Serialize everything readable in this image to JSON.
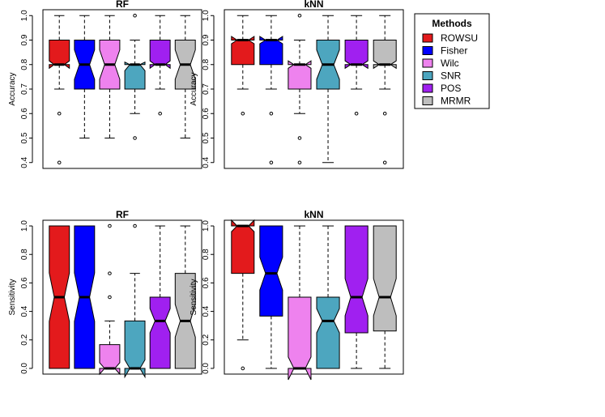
{
  "legend": {
    "title": "Methods",
    "entries": [
      {
        "name": "ROWSU",
        "color": "#e31a1c"
      },
      {
        "name": "Fisher",
        "color": "#0000ff"
      },
      {
        "name": "Wilc",
        "color": "#ee82ee"
      },
      {
        "name": "SNR",
        "color": "#4da6bf"
      },
      {
        "name": "POS",
        "color": "#a020f0"
      },
      {
        "name": "MRMR",
        "color": "#bebebe"
      }
    ]
  },
  "chart_data": [
    {
      "type": "boxplot",
      "title": "RF",
      "ylabel": "Accuracy",
      "ylim": [
        0.4,
        1.0
      ],
      "yticks": [
        "0.4",
        "0.5",
        "0.6",
        "0.7",
        "0.8",
        "0.9",
        "1.0"
      ],
      "series": [
        {
          "name": "ROWSU",
          "q1": 0.8,
          "median": 0.8,
          "q3": 0.9,
          "whisker_low": 0.7,
          "whisker_high": 1.0,
          "notch": [
            0.785,
            0.815
          ],
          "outliers": [
            0.6,
            0.4
          ]
        },
        {
          "name": "Fisher",
          "q1": 0.7,
          "median": 0.8,
          "q3": 0.9,
          "whisker_low": 0.5,
          "whisker_high": 1.0,
          "notch": [
            0.74,
            0.86
          ],
          "outliers": []
        },
        {
          "name": "Wilc",
          "q1": 0.7,
          "median": 0.8,
          "q3": 0.9,
          "whisker_low": 0.5,
          "whisker_high": 1.0,
          "notch": [
            0.74,
            0.86
          ],
          "outliers": []
        },
        {
          "name": "SNR",
          "q1": 0.7,
          "median": 0.8,
          "q3": 0.8,
          "whisker_low": 0.6,
          "whisker_high": 0.9,
          "notch": [
            0.775,
            0.81
          ],
          "outliers": [
            1.0,
            0.5
          ]
        },
        {
          "name": "POS",
          "q1": 0.8,
          "median": 0.8,
          "q3": 0.9,
          "whisker_low": 0.7,
          "whisker_high": 1.0,
          "notch": [
            0.785,
            0.815
          ],
          "outliers": [
            0.6
          ]
        },
        {
          "name": "MRMR",
          "q1": 0.7,
          "median": 0.8,
          "q3": 0.9,
          "whisker_low": 0.5,
          "whisker_high": 1.0,
          "notch": [
            0.74,
            0.86
          ],
          "outliers": []
        }
      ]
    },
    {
      "type": "boxplot",
      "title": "kNN",
      "ylabel": "Accuracy",
      "ylim": [
        0.4,
        1.0
      ],
      "yticks": [
        "0.4",
        "0.5",
        "0.6",
        "0.7",
        "0.8",
        "0.9",
        "1.0"
      ],
      "series": [
        {
          "name": "ROWSU",
          "q1": 0.8,
          "median": 0.9,
          "q3": 0.9,
          "whisker_low": 0.7,
          "whisker_high": 1.0,
          "notch": [
            0.885,
            0.915
          ],
          "outliers": [
            0.6
          ]
        },
        {
          "name": "Fisher",
          "q1": 0.8,
          "median": 0.9,
          "q3": 0.9,
          "whisker_low": 0.7,
          "whisker_high": 1.0,
          "notch": [
            0.885,
            0.915
          ],
          "outliers": [
            0.6,
            0.4
          ]
        },
        {
          "name": "Wilc",
          "q1": 0.7,
          "median": 0.8,
          "q3": 0.8,
          "whisker_low": 0.6,
          "whisker_high": 0.9,
          "notch": [
            0.785,
            0.815
          ],
          "outliers": [
            1.0,
            0.5,
            0.4
          ]
        },
        {
          "name": "SNR",
          "q1": 0.7,
          "median": 0.8,
          "q3": 0.9,
          "whisker_low": 0.4,
          "whisker_high": 1.0,
          "notch": [
            0.74,
            0.86
          ],
          "outliers": []
        },
        {
          "name": "POS",
          "q1": 0.8,
          "median": 0.8,
          "q3": 0.9,
          "whisker_low": 0.7,
          "whisker_high": 1.0,
          "notch": [
            0.785,
            0.815
          ],
          "outliers": [
            0.6
          ]
        },
        {
          "name": "MRMR",
          "q1": 0.8,
          "median": 0.8,
          "q3": 0.9,
          "whisker_low": 0.7,
          "whisker_high": 1.0,
          "notch": [
            0.785,
            0.815
          ],
          "outliers": [
            0.6,
            0.4
          ]
        }
      ]
    },
    {
      "type": "boxplot",
      "title": "RF",
      "ylabel": "Sensitivity",
      "ylim": [
        0.0,
        1.0
      ],
      "yticks": [
        "0.0",
        "0.2",
        "0.4",
        "0.6",
        "0.8",
        "1.0"
      ],
      "series": [
        {
          "name": "ROWSU",
          "q1": 0.0,
          "median": 0.5,
          "q3": 1.0,
          "whisker_low": 0.0,
          "whisker_high": 1.0,
          "notch": [
            0.33,
            0.67
          ],
          "outliers": []
        },
        {
          "name": "Fisher",
          "q1": 0.0,
          "median": 0.5,
          "q3": 1.0,
          "whisker_low": 0.0,
          "whisker_high": 1.0,
          "notch": [
            0.33,
            0.67
          ],
          "outliers": []
        },
        {
          "name": "Wilc",
          "q1": 0.0,
          "median": 0.0,
          "q3": 0.167,
          "whisker_low": 0.0,
          "whisker_high": 0.333,
          "notch": [
            -0.04,
            0.04
          ],
          "outliers": [
            1.0,
            0.667,
            0.5
          ]
        },
        {
          "name": "SNR",
          "q1": 0.0,
          "median": 0.0,
          "q3": 0.333,
          "whisker_low": 0.0,
          "whisker_high": 0.667,
          "notch": [
            -0.06,
            0.06
          ],
          "outliers": [
            1.0
          ]
        },
        {
          "name": "POS",
          "q1": 0.0,
          "median": 0.333,
          "q3": 0.5,
          "whisker_low": 0.0,
          "whisker_high": 1.0,
          "notch": [
            0.25,
            0.42
          ],
          "outliers": []
        },
        {
          "name": "MRMR",
          "q1": 0.0,
          "median": 0.333,
          "q3": 0.667,
          "whisker_low": 0.0,
          "whisker_high": 1.0,
          "notch": [
            0.22,
            0.45
          ],
          "outliers": []
        }
      ]
    },
    {
      "type": "boxplot",
      "title": "kNN",
      "ylabel": "Sensitivity",
      "ylim": [
        0.0,
        1.0
      ],
      "yticks": [
        "0.0",
        "0.2",
        "0.4",
        "0.6",
        "0.8",
        "1.0"
      ],
      "series": [
        {
          "name": "ROWSU",
          "q1": 0.667,
          "median": 1.0,
          "q3": 1.0,
          "whisker_low": 0.2,
          "whisker_high": 1.0,
          "notch": [
            0.96,
            1.04
          ],
          "outliers": [
            0.0
          ]
        },
        {
          "name": "Fisher",
          "q1": 0.367,
          "median": 0.667,
          "q3": 1.0,
          "whisker_low": 0.0,
          "whisker_high": 1.0,
          "notch": [
            0.55,
            0.78
          ],
          "outliers": []
        },
        {
          "name": "Wilc",
          "q1": 0.0,
          "median": 0.0,
          "q3": 0.5,
          "whisker_low": 0.0,
          "whisker_high": 1.0,
          "notch": [
            -0.08,
            0.08
          ],
          "outliers": []
        },
        {
          "name": "SNR",
          "q1": 0.0,
          "median": 0.333,
          "q3": 0.5,
          "whisker_low": 0.0,
          "whisker_high": 1.0,
          "notch": [
            0.25,
            0.42
          ],
          "outliers": []
        },
        {
          "name": "POS",
          "q1": 0.25,
          "median": 0.5,
          "q3": 1.0,
          "whisker_low": 0.0,
          "whisker_high": 1.0,
          "notch": [
            0.37,
            0.63
          ],
          "outliers": []
        },
        {
          "name": "MRMR",
          "q1": 0.263,
          "median": 0.5,
          "q3": 1.0,
          "whisker_low": 0.0,
          "whisker_high": 1.0,
          "notch": [
            0.37,
            0.63
          ],
          "outliers": []
        }
      ]
    }
  ]
}
